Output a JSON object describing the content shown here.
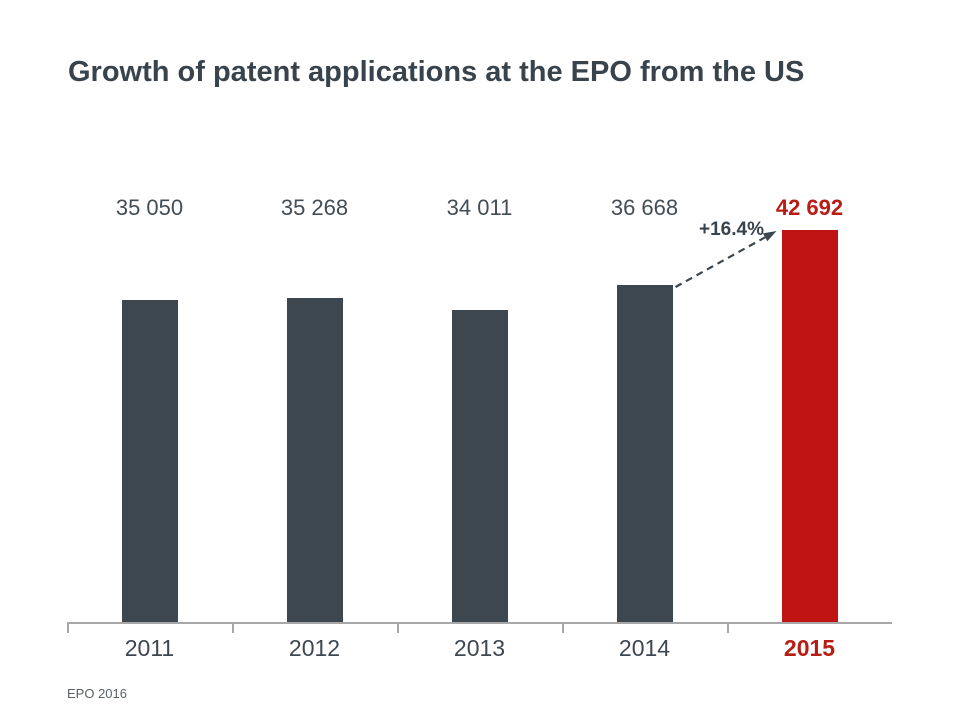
{
  "title": "Growth of patent applications at the EPO from the US",
  "footer": "EPO 2016",
  "colors": {
    "bar_default": "#3d4750",
    "bar_highlight": "#c01414",
    "value_text_default": "#424d56",
    "value_text_highlight": "#b71d15",
    "year_text_default": "#3d4751",
    "year_text_highlight": "#b71d15",
    "title_text": "#39434c",
    "axis": "#a7a7a7",
    "arrow": "#3d4750",
    "footer_text": "#5a6168"
  },
  "chart_data": {
    "type": "bar",
    "title": "Growth of patent applications at the EPO from the US",
    "categories": [
      "2011",
      "2012",
      "2013",
      "2014",
      "2015"
    ],
    "values": [
      35050,
      35268,
      34011,
      36668,
      42692
    ],
    "value_labels": [
      "35 050",
      "35 268",
      "34 011",
      "36 668",
      "42 692"
    ],
    "highlight_index": 4,
    "xlabel": "",
    "ylabel": "",
    "ylim": [
      0,
      42692
    ],
    "grid": false,
    "legend": "none",
    "annotation": {
      "text": "+16.4%",
      "from_category": "2014",
      "to_category": "2015",
      "style": "dashed-arrow"
    }
  }
}
